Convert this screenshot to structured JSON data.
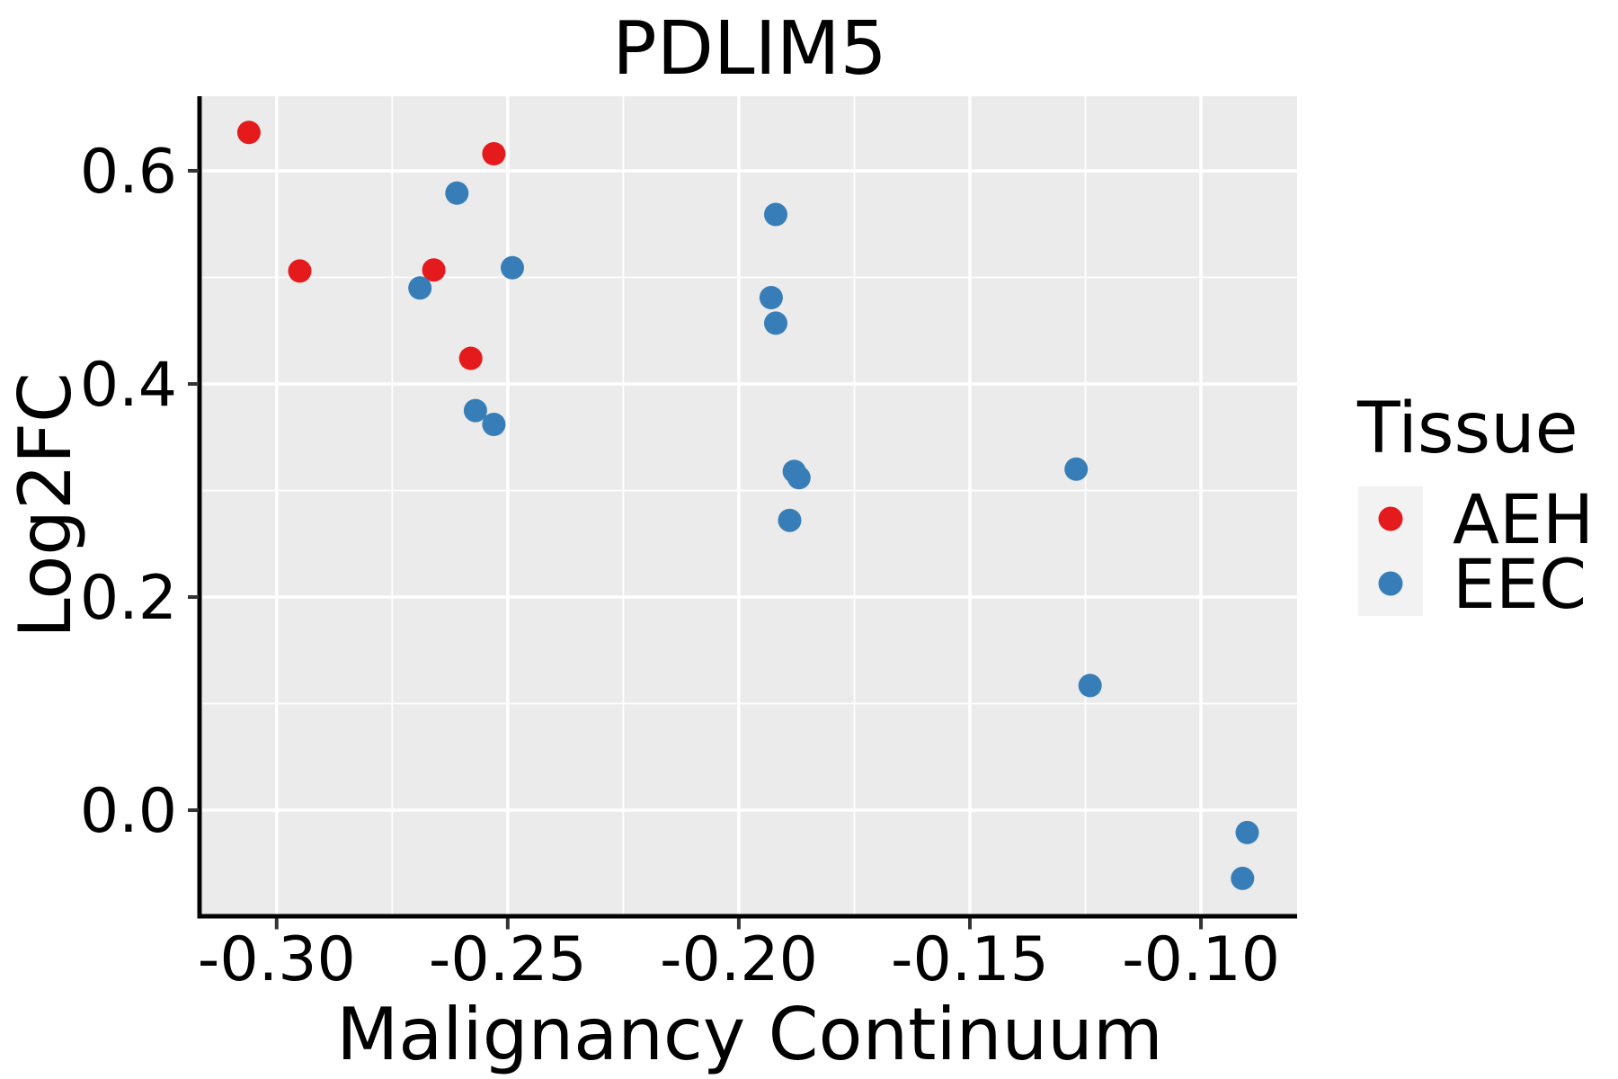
{
  "chart_data": {
    "type": "scatter",
    "title": "PDLIM5",
    "xlabel": "Malignancy Continuum",
    "ylabel": "Log2FC",
    "xlim": [
      -0.3161,
      -0.0792
    ],
    "ylim": [
      -0.0987,
      0.67
    ],
    "x_ticks": [
      -0.3,
      -0.25,
      -0.2,
      -0.15,
      -0.1
    ],
    "x_tick_labels": [
      "-0.30",
      "-0.25",
      "-0.20",
      "-0.15",
      "-0.10"
    ],
    "x_minor_ticks": [
      -0.275,
      -0.225,
      -0.175,
      -0.125
    ],
    "y_ticks": [
      0.0,
      0.2,
      0.4,
      0.6
    ],
    "y_tick_labels": [
      "0.0",
      "0.2",
      "0.4",
      "0.6"
    ],
    "y_minor_ticks": [
      0.1,
      0.3,
      0.5
    ],
    "grid": "major-and-minor-white-on-gray",
    "panel_background": "#EBEBEB",
    "grid_color": "#FFFFFF",
    "point_radius_px": 13,
    "legend": {
      "title": "Tissue",
      "position": "right",
      "key_background": "#F2F2F2"
    },
    "series": [
      {
        "name": "AEH",
        "color": "#E41A1C",
        "points": [
          [
            -0.306,
            0.636
          ],
          [
            -0.295,
            0.506
          ],
          [
            -0.266,
            0.507
          ],
          [
            -0.258,
            0.424
          ],
          [
            -0.253,
            0.616
          ]
        ]
      },
      {
        "name": "EEC",
        "color": "#377EB8",
        "points": [
          [
            -0.269,
            0.49
          ],
          [
            -0.261,
            0.579
          ],
          [
            -0.257,
            0.375
          ],
          [
            -0.253,
            0.362
          ],
          [
            -0.249,
            0.509
          ],
          [
            -0.193,
            0.481
          ],
          [
            -0.192,
            0.559
          ],
          [
            -0.192,
            0.457
          ],
          [
            -0.189,
            0.272
          ],
          [
            -0.188,
            0.318
          ],
          [
            -0.187,
            0.312
          ],
          [
            -0.127,
            0.32
          ],
          [
            -0.124,
            0.117
          ],
          [
            -0.09,
            -0.021
          ],
          [
            -0.091,
            -0.064
          ]
        ]
      }
    ]
  }
}
